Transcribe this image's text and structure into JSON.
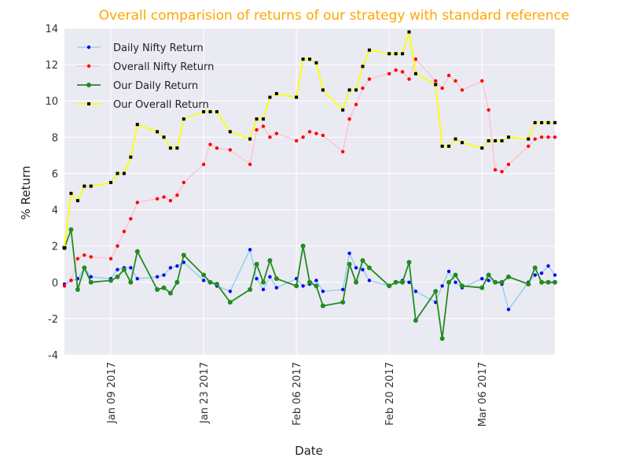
{
  "chart_data": {
    "type": "line",
    "title": "Overall comparision of returns of our strategy with standard reference",
    "title_color": "#FFA500",
    "xlabel": "Date",
    "ylabel": "% Return",
    "ylim": [
      -4,
      14
    ],
    "yticks": [
      -4,
      -2,
      0,
      2,
      4,
      6,
      8,
      10,
      12,
      14
    ],
    "xlim": [
      "2017-01-02",
      "2017-03-17"
    ],
    "xticks": [
      "2017-01-09",
      "2017-01-23",
      "2017-02-06",
      "2017-02-20",
      "2017-03-06"
    ],
    "xtick_labels": [
      "Jan 09 2017",
      "Jan 23 2017",
      "Feb 06 2017",
      "Feb 20 2017",
      "Mar 06 2017"
    ],
    "grid": true,
    "plot_background": "#EAEAF2",
    "legend_position": "top-left",
    "x": [
      "2017-01-02",
      "2017-01-03",
      "2017-01-04",
      "2017-01-05",
      "2017-01-06",
      "2017-01-09",
      "2017-01-10",
      "2017-01-11",
      "2017-01-12",
      "2017-01-13",
      "2017-01-16",
      "2017-01-17",
      "2017-01-18",
      "2017-01-19",
      "2017-01-20",
      "2017-01-23",
      "2017-01-24",
      "2017-01-25",
      "2017-01-27",
      "2017-01-30",
      "2017-01-31",
      "2017-02-01",
      "2017-02-02",
      "2017-02-03",
      "2017-02-06",
      "2017-02-07",
      "2017-02-08",
      "2017-02-09",
      "2017-02-10",
      "2017-02-13",
      "2017-02-14",
      "2017-02-15",
      "2017-02-16",
      "2017-02-17",
      "2017-02-20",
      "2017-02-21",
      "2017-02-22",
      "2017-02-23",
      "2017-02-24",
      "2017-02-27",
      "2017-02-28",
      "2017-03-01",
      "2017-03-02",
      "2017-03-03",
      "2017-03-06",
      "2017-03-07",
      "2017-03-08",
      "2017-03-09",
      "2017-03-10",
      "2017-03-13",
      "2017-03-14",
      "2017-03-15",
      "2017-03-16",
      "2017-03-17"
    ],
    "series": [
      {
        "name": "Daily Nifty Return",
        "color": "#87CEEB",
        "marker_color": "#0000FF",
        "values": [
          -0.1,
          0.1,
          0.2,
          0.8,
          0.3,
          0.2,
          0.7,
          0.8,
          0.8,
          0.2,
          0.3,
          0.4,
          0.8,
          0.9,
          1.1,
          0.1,
          0.0,
          -0.2,
          -0.5,
          1.8,
          0.2,
          -0.4,
          0.3,
          -0.3,
          0.2,
          -0.2,
          -0.1,
          0.1,
          -0.5,
          -0.4,
          1.6,
          0.8,
          0.7,
          0.1,
          -0.2,
          0.0,
          0.1,
          0.0,
          -0.5,
          -1.1,
          -0.2,
          0.6,
          0.0,
          -0.3,
          0.2,
          0.1,
          0.0,
          -0.1,
          -1.5,
          0.0,
          0.4,
          0.5,
          0.9,
          0.4
        ]
      },
      {
        "name": "Overall Nifty Return",
        "color": "#FFC0CB",
        "marker_color": "#FF0000",
        "values": [
          -0.2,
          0.1,
          1.3,
          1.5,
          1.4,
          1.3,
          2.0,
          2.8,
          3.5,
          4.4,
          4.6,
          4.7,
          4.5,
          4.8,
          5.5,
          6.5,
          7.6,
          7.4,
          7.3,
          6.5,
          8.4,
          8.6,
          8.0,
          8.2,
          7.8,
          8.0,
          8.3,
          8.2,
          8.1,
          7.2,
          9.0,
          9.8,
          10.7,
          11.2,
          11.5,
          11.7,
          11.6,
          11.2,
          12.3,
          11.1,
          10.7,
          11.4,
          11.1,
          10.6,
          11.1,
          9.5,
          6.2,
          6.1,
          6.5,
          7.5,
          7.9,
          8.0,
          8.0,
          8.0
        ]
      },
      {
        "name": "Our Daily Return",
        "color": "#228B22",
        "marker_color": "#228B22",
        "values": [
          1.9,
          2.9,
          -0.4,
          0.8,
          0.0,
          0.1,
          0.3,
          0.7,
          0.0,
          1.7,
          -0.4,
          -0.3,
          -0.6,
          0.0,
          1.5,
          0.4,
          0.0,
          -0.1,
          -1.1,
          -0.4,
          1.0,
          0.0,
          1.2,
          0.2,
          -0.2,
          2.0,
          0.0,
          -0.2,
          -1.3,
          -1.1,
          1.0,
          0.0,
          1.2,
          0.8,
          -0.2,
          0.0,
          0.0,
          1.1,
          -2.1,
          -0.5,
          -3.1,
          0.0,
          0.4,
          -0.2,
          -0.3,
          0.4,
          0.0,
          0.0,
          0.3,
          -0.1,
          0.8,
          0.0,
          0.0,
          0.0
        ]
      },
      {
        "name": "Our Overall Return",
        "color": "#FFFF00",
        "marker_color": "#000000",
        "values": [
          1.9,
          4.9,
          4.5,
          5.3,
          5.3,
          5.5,
          6.0,
          6.0,
          6.9,
          8.7,
          8.3,
          8.0,
          7.4,
          7.4,
          9.0,
          9.4,
          9.4,
          9.4,
          8.3,
          7.9,
          9.0,
          9.0,
          10.2,
          10.4,
          10.2,
          12.3,
          12.3,
          12.1,
          10.6,
          9.5,
          10.6,
          10.6,
          11.9,
          12.8,
          12.6,
          12.6,
          12.6,
          13.8,
          11.5,
          10.9,
          7.5,
          7.5,
          7.9,
          7.7,
          7.4,
          7.8,
          7.8,
          7.8,
          8.0,
          7.9,
          8.8,
          8.8,
          8.8,
          8.8
        ]
      }
    ]
  }
}
